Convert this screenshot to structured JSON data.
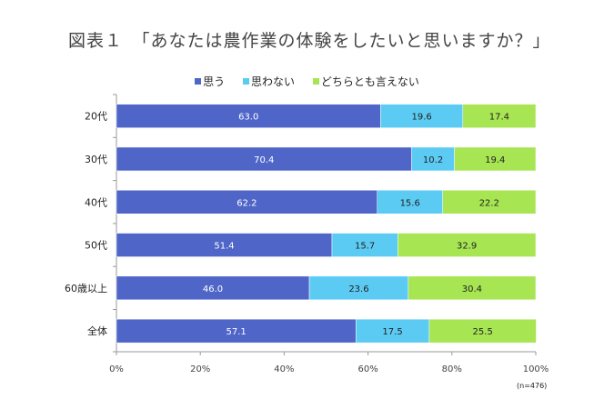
{
  "chart_data": {
    "type": "bar",
    "stacked": true,
    "orientation": "horizontal",
    "title": "図表１　「あなたは農作業の体験をしたいと思いますか？」",
    "categories": [
      "20代",
      "30代",
      "40代",
      "50代",
      "60歳以上",
      "全体"
    ],
    "series": [
      {
        "name": "思う",
        "color": "#4F66C8",
        "values": [
          63.0,
          70.4,
          62.2,
          51.4,
          46.0,
          57.1
        ]
      },
      {
        "name": "思わない",
        "color": "#5CCBF4",
        "values": [
          19.6,
          10.2,
          15.6,
          15.7,
          23.6,
          17.5
        ]
      },
      {
        "name": "どちらとも言えない",
        "color": "#A7E553",
        "values": [
          17.4,
          19.4,
          22.2,
          32.9,
          30.4,
          25.5
        ]
      }
    ],
    "xlim": [
      0,
      100
    ],
    "xticks": [
      "0%",
      "20%",
      "40%",
      "60%",
      "80%",
      "100%"
    ],
    "legend": "top",
    "grid": false,
    "note": "(n=476)"
  }
}
